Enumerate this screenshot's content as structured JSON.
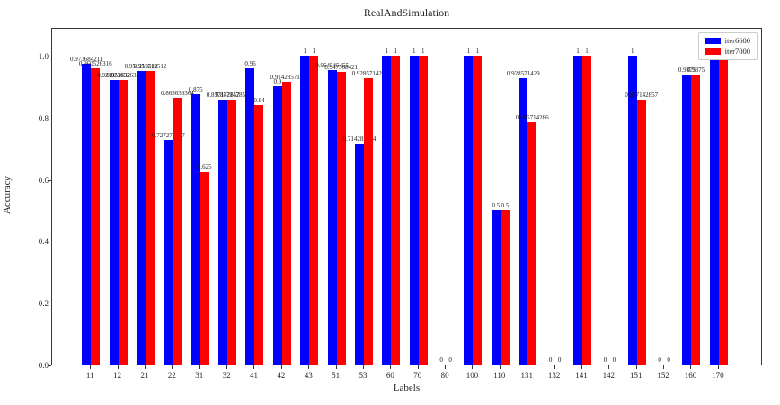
{
  "figure": {
    "background": "#ffffff",
    "spine_color": "#363636"
  },
  "chart_data": {
    "type": "bar",
    "title": "RealAndSimulation",
    "xlabel": "Labels",
    "ylabel": "Accuracy",
    "ylim": [
      0.0,
      1.093
    ],
    "yticks": [
      "0.0",
      "0.2",
      "0.4",
      "0.6",
      "0.8",
      "1.0"
    ],
    "ytick_values": [
      0.0,
      0.2,
      0.4,
      0.6,
      0.8,
      1.0
    ],
    "grid": false,
    "legend_position": "upper right",
    "bar_value_labels_shown": true,
    "categories": [
      "11",
      "12",
      "21",
      "22",
      "31",
      "32",
      "41",
      "42",
      "43",
      "51",
      "53",
      "60",
      "70",
      "80",
      "100",
      "110",
      "131",
      "132",
      "141",
      "142",
      "151",
      "152",
      "160",
      "170"
    ],
    "series": [
      {
        "name": "iter6600",
        "color": "#0000ff",
        "values": [
          0.973684211,
          0.921052632,
          0.951219512,
          0.727272727,
          0.875,
          0.857142857,
          0.96,
          0.9,
          1,
          0.954545455,
          0.714285714,
          1,
          1,
          0,
          1,
          0.5,
          0.928571429,
          0,
          1,
          0,
          1,
          0,
          0.9375,
          1
        ],
        "labels": [
          "0.973684211",
          "0.921052632",
          "0.951219512",
          "0.727272727",
          "0.875",
          "0.857142857",
          "0.96",
          "0.9",
          "1",
          "0.954545455",
          "0.714285714",
          "1",
          "1",
          "0",
          "1",
          "0.5",
          "0.928571429",
          "0",
          "1",
          "0",
          "1",
          "0",
          "0.9375",
          "1"
        ]
      },
      {
        "name": "iter7000",
        "color": "#ff0000",
        "values": [
          0.960526316,
          0.921052632,
          0.951219512,
          0.863636364,
          0.625,
          0.857142857,
          0.84,
          0.914285714,
          1,
          0.947368421,
          0.928571429,
          1,
          1,
          0,
          1,
          0.5,
          0.785714286,
          0,
          1,
          0,
          0.857142857,
          0,
          0.9375,
          1
        ],
        "labels": [
          "0.960526316",
          "0.921052632",
          "0.951219512",
          "0.863636364",
          "0.625",
          "0.857142857",
          "0.84",
          "0.914285714",
          "1",
          "0.947368421",
          "0.928571429",
          "1",
          "1",
          "0",
          "1",
          "0.5",
          "0.785714286",
          "0",
          "1",
          "0",
          "0.857142857",
          "0",
          "0.9375",
          "1"
        ]
      }
    ]
  }
}
